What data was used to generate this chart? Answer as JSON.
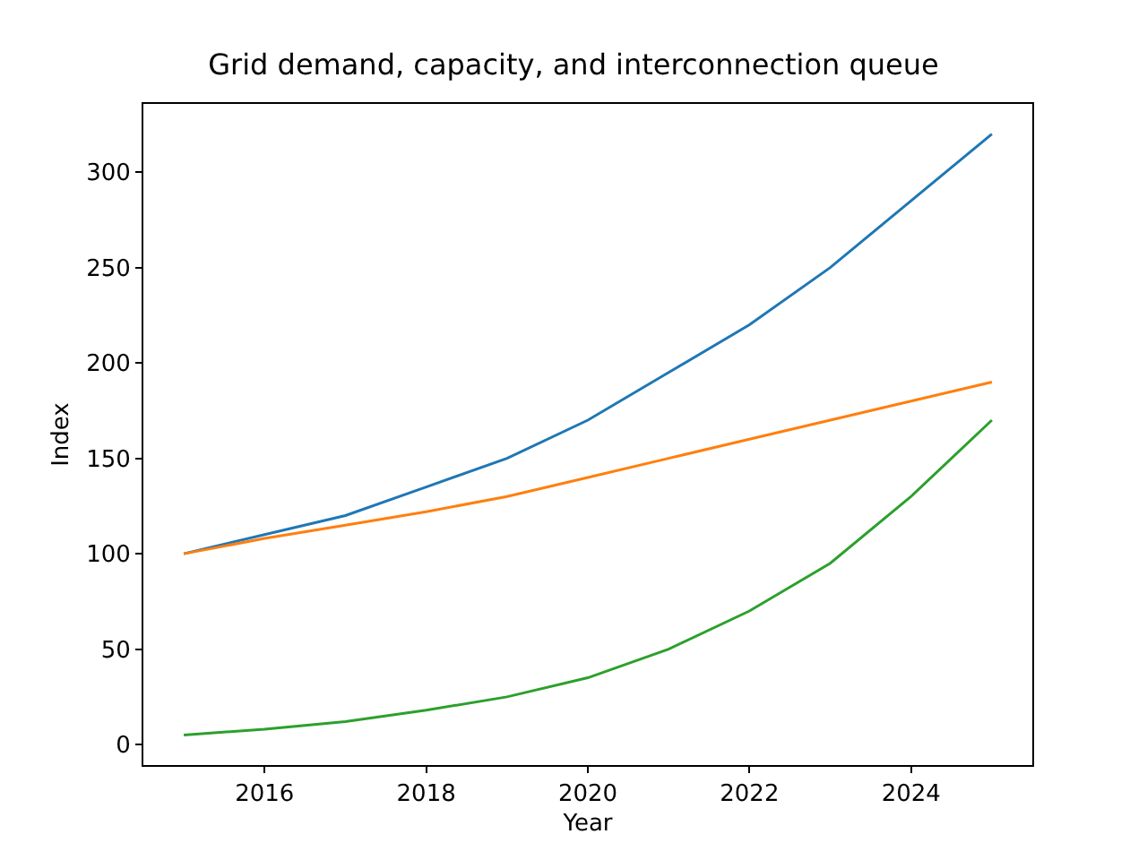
{
  "chart_data": {
    "type": "line",
    "title": "Grid demand, capacity, and interconnection queue",
    "xlabel": "Year",
    "ylabel": "Index",
    "x": [
      2015,
      2016,
      2017,
      2018,
      2019,
      2020,
      2021,
      2022,
      2023,
      2024,
      2025
    ],
    "series": [
      {
        "color": "#1f77b4",
        "values": [
          100,
          110,
          120,
          135,
          150,
          170,
          195,
          220,
          250,
          285,
          320
        ]
      },
      {
        "color": "#ff7f0e",
        "values": [
          100,
          108,
          115,
          122,
          130,
          140,
          150,
          160,
          170,
          180,
          190
        ]
      },
      {
        "color": "#2ca02c",
        "values": [
          5,
          8,
          12,
          18,
          25,
          35,
          50,
          70,
          95,
          130,
          170
        ]
      }
    ],
    "xlim": [
      2014.5,
      2025.5
    ],
    "xticks": [
      2016,
      2018,
      2020,
      2022,
      2024
    ],
    "ylim": [
      -10.75,
      335.75
    ],
    "yticks": [
      0,
      50,
      100,
      150,
      200,
      250,
      300
    ],
    "marker": "none",
    "line_style": "solid"
  }
}
